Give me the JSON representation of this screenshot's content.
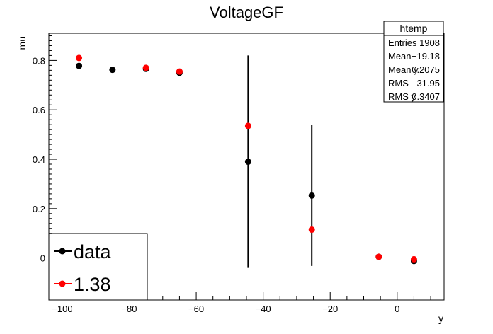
{
  "chart_data": {
    "type": "scatter",
    "title": "VoltageGF",
    "xlabel": "y",
    "ylabel": "mu",
    "xlim": [
      -104,
      14
    ],
    "ylim": [
      -0.17,
      0.91
    ],
    "x_ticks": [
      -100,
      -80,
      -60,
      -40,
      -20,
      0
    ],
    "y_ticks": [
      0,
      0.2,
      0.4,
      0.6,
      0.8
    ],
    "grid": false,
    "legend_position": "bottom-left",
    "series": [
      {
        "name": "data",
        "color": "#000000",
        "points": [
          {
            "x": -95,
            "y": 0.778,
            "err": 0.0
          },
          {
            "x": -85,
            "y": 0.762,
            "err": 0.0
          },
          {
            "x": -75,
            "y": 0.766,
            "err": 0.0
          },
          {
            "x": -65,
            "y": 0.75,
            "err": 0.0
          },
          {
            "x": -44.5,
            "y": 0.39,
            "err": 0.43
          },
          {
            "x": -25.5,
            "y": 0.253,
            "err": 0.285
          },
          {
            "x": -5.5,
            "y": 0.005,
            "err": 0.0
          },
          {
            "x": 5,
            "y": -0.012,
            "err": 0.0
          }
        ]
      },
      {
        "name": "1.38",
        "color": "#ff0000",
        "points": [
          {
            "x": -95,
            "y": 0.81
          },
          {
            "x": -75,
            "y": 0.77
          },
          {
            "x": -65,
            "y": 0.755
          },
          {
            "x": -44.5,
            "y": 0.535
          },
          {
            "x": -25.5,
            "y": 0.115
          },
          {
            "x": -5.5,
            "y": 0.005
          },
          {
            "x": 5,
            "y": -0.005
          }
        ]
      }
    ],
    "stats_box": {
      "title": "htemp",
      "rows": [
        {
          "label": "Entries",
          "value": "1908"
        },
        {
          "label": "Mean",
          "value": "−19.18"
        },
        {
          "label": "Mean y",
          "value": "0.2075"
        },
        {
          "label": "RMS",
          "value": "31.95"
        },
        {
          "label": "RMS y",
          "value": "0.3407"
        }
      ]
    }
  }
}
